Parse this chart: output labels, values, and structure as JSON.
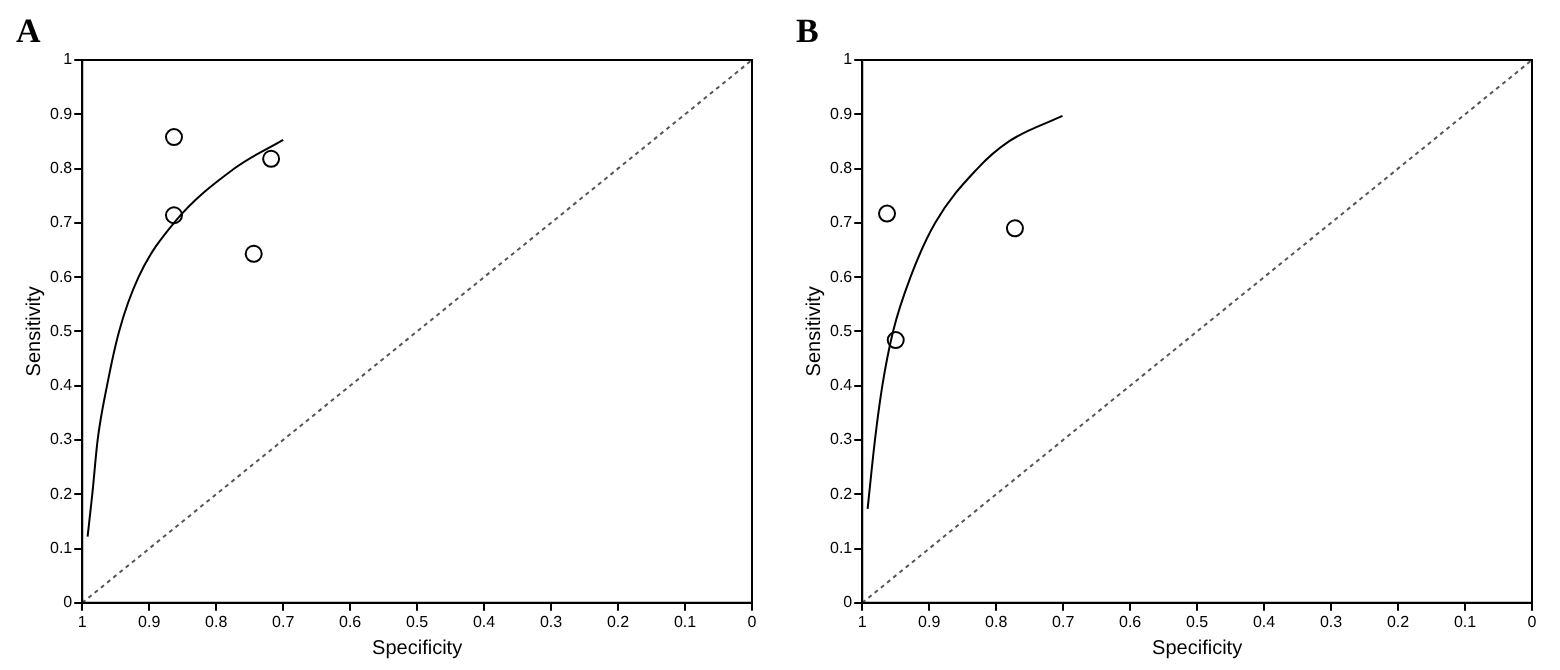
{
  "chart_data": [
    {
      "type": "scatter",
      "title": "A",
      "xlabel": "Specificity",
      "ylabel": "Sensitivity",
      "xlim": [
        1,
        0
      ],
      "ylim": [
        0,
        1
      ],
      "xticks": [
        1,
        0.9,
        0.8,
        0.7,
        0.6,
        0.5,
        0.4,
        0.3,
        0.2,
        0.1,
        0
      ],
      "yticks": [
        0,
        0.1,
        0.2,
        0.3,
        0.4,
        0.5,
        0.6,
        0.7,
        0.8,
        0.9,
        1
      ],
      "grid": false,
      "legend": false,
      "series": [
        {
          "type": "scatter",
          "marker": "circle",
          "color": "#000000",
          "x": [
            0.863,
            0.718,
            0.863,
            0.744
          ],
          "values": [
            0.858,
            0.818,
            0.714,
            0.643
          ]
        },
        {
          "type": "line",
          "marker": "none",
          "color": "#000000",
          "line_style": "solid",
          "x": [
            0.992,
            0.985,
            0.977,
            0.963,
            0.945,
            0.916,
            0.863,
            0.773,
            0.7
          ],
          "values": [
            0.122,
            0.2,
            0.3,
            0.4,
            0.5,
            0.6,
            0.7,
            0.8,
            0.853
          ]
        },
        {
          "type": "line",
          "marker": "none",
          "color": "#555555",
          "line_style": "dotted",
          "x": [
            1,
            0
          ],
          "values": [
            0,
            1
          ]
        }
      ]
    },
    {
      "type": "scatter",
      "title": "B",
      "xlabel": "Specificity",
      "ylabel": "Sensitivity",
      "xlim": [
        1,
        0
      ],
      "ylim": [
        0,
        1
      ],
      "xticks": [
        1,
        0.9,
        0.8,
        0.7,
        0.6,
        0.5,
        0.4,
        0.3,
        0.2,
        0.1,
        0
      ],
      "yticks": [
        0,
        0.1,
        0.2,
        0.3,
        0.4,
        0.5,
        0.6,
        0.7,
        0.8,
        0.9,
        1
      ],
      "grid": false,
      "legend": false,
      "series": [
        {
          "type": "scatter",
          "marker": "circle",
          "color": "#000000",
          "x": [
            0.963,
            0.772,
            0.95
          ],
          "values": [
            0.717,
            0.69,
            0.484
          ]
        },
        {
          "type": "line",
          "marker": "none",
          "color": "#000000",
          "line_style": "solid",
          "x": [
            0.992,
            0.981,
            0.97,
            0.954,
            0.928,
            0.891,
            0.828,
            0.781,
            0.701
          ],
          "values": [
            0.173,
            0.3,
            0.4,
            0.5,
            0.6,
            0.7,
            0.8,
            0.85,
            0.897
          ]
        },
        {
          "type": "line",
          "marker": "none",
          "color": "#555555",
          "line_style": "dotted",
          "x": [
            1,
            0
          ],
          "values": [
            0,
            1
          ]
        }
      ]
    }
  ]
}
